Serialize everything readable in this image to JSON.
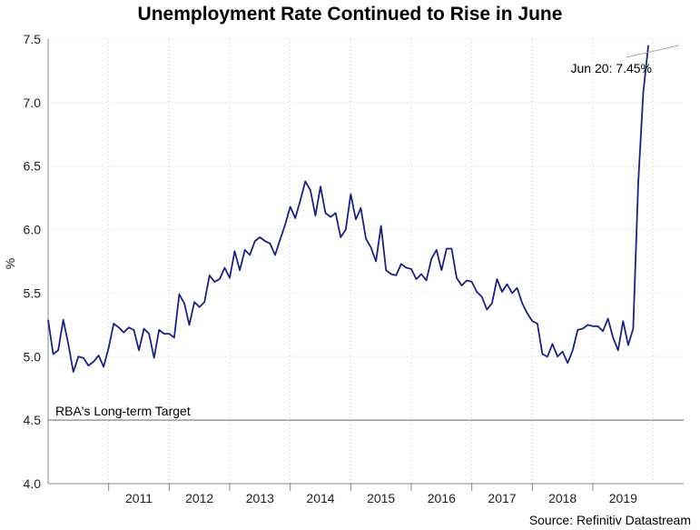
{
  "chart_data": {
    "type": "line",
    "title": "Unemployment Rate Continued to Rise in June",
    "ylabel": "%",
    "xlabel": "",
    "ylim": [
      4.0,
      7.5
    ],
    "yticks": [
      "4.0",
      "4.5",
      "5.0",
      "5.5",
      "6.0",
      "6.5",
      "7.0",
      "7.5"
    ],
    "xlim": [
      2010.0,
      2020.5
    ],
    "xticks": [
      "2011",
      "2012",
      "2013",
      "2014",
      "2015",
      "2016",
      "2017",
      "2018",
      "2019"
    ],
    "grid": true,
    "series": [
      {
        "name": "Unemployment Rate",
        "color": "#1a237e",
        "x_start": 2010.0,
        "step": 0.08333,
        "values": [
          5.29,
          5.02,
          5.05,
          5.29,
          5.1,
          4.88,
          5.0,
          4.99,
          4.93,
          4.96,
          5.01,
          4.92,
          5.07,
          5.26,
          5.23,
          5.19,
          5.23,
          5.21,
          5.05,
          5.22,
          5.18,
          4.99,
          5.21,
          5.18,
          5.18,
          5.15,
          5.49,
          5.42,
          5.25,
          5.43,
          5.39,
          5.43,
          5.64,
          5.59,
          5.61,
          5.7,
          5.62,
          5.83,
          5.68,
          5.84,
          5.8,
          5.91,
          5.94,
          5.91,
          5.89,
          5.8,
          5.92,
          6.04,
          6.18,
          6.09,
          6.23,
          6.38,
          6.31,
          6.11,
          6.34,
          6.13,
          6.1,
          6.13,
          5.94,
          6.0,
          6.28,
          6.08,
          6.17,
          5.93,
          5.86,
          5.75,
          6.03,
          5.68,
          5.65,
          5.64,
          5.73,
          5.7,
          5.69,
          5.61,
          5.65,
          5.6,
          5.77,
          5.84,
          5.68,
          5.85,
          5.85,
          5.62,
          5.56,
          5.6,
          5.59,
          5.51,
          5.47,
          5.37,
          5.42,
          5.61,
          5.51,
          5.57,
          5.5,
          5.54,
          5.42,
          5.34,
          5.28,
          5.26,
          5.02,
          5.0,
          5.1,
          5.0,
          5.04,
          4.95,
          5.05,
          5.21,
          5.22,
          5.25,
          5.24,
          5.24,
          5.2,
          5.3,
          5.15,
          5.05,
          5.28,
          5.09,
          5.22,
          6.37,
          7.08,
          7.45
        ]
      }
    ],
    "annotations": [
      {
        "text": "Jun 20: 7.45%",
        "x": 2020.4167,
        "y": 7.45
      },
      {
        "text": "RBA's Long-term Target",
        "y": 4.5
      }
    ],
    "source": "Source: Refinitiv Datastream"
  }
}
